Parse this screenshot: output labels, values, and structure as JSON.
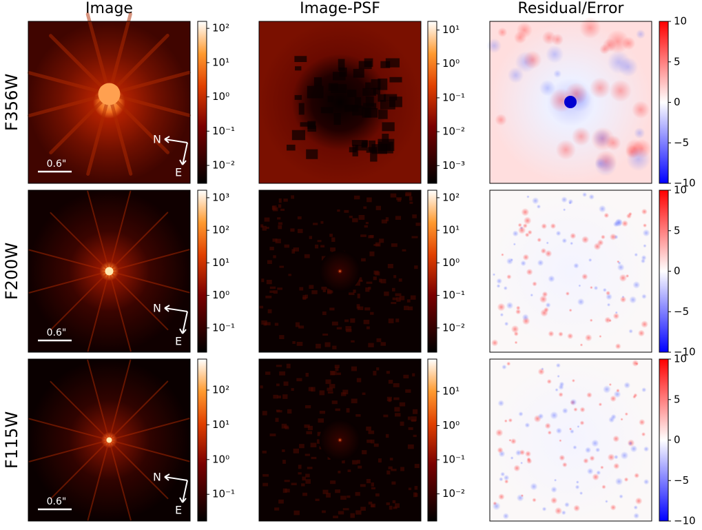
{
  "columns": [
    "Image",
    "Image-PSF",
    "Residual/Error"
  ],
  "rows": [
    {
      "label": "F356W",
      "scale_bar": "0.6\"",
      "compass": {
        "north": "N",
        "east": "E"
      },
      "colorbars": [
        {
          "colormap": "gist_heat",
          "scale": "log",
          "lim": [
            0.003,
            160
          ],
          "ticks": [
            {
              "value": 0.01,
              "label": "10⁻²"
            },
            {
              "value": 0.1,
              "label": "10⁻¹"
            },
            {
              "value": 1,
              "label": "10⁰"
            },
            {
              "value": 10,
              "label": "10¹"
            },
            {
              "value": 100,
              "label": "10²"
            }
          ]
        },
        {
          "colormap": "gist_heat",
          "scale": "log",
          "lim": [
            0.0003,
            18
          ],
          "ticks": [
            {
              "value": 0.001,
              "label": "10⁻³"
            },
            {
              "value": 0.01,
              "label": "10⁻²"
            },
            {
              "value": 0.1,
              "label": "10⁻¹"
            },
            {
              "value": 1,
              "label": "10⁰"
            },
            {
              "value": 10,
              "label": "10¹"
            }
          ]
        },
        {
          "colormap": "bwr",
          "scale": "linear",
          "lim": [
            -10,
            10
          ],
          "ticks": [
            {
              "value": -10,
              "label": "−10"
            },
            {
              "value": -5,
              "label": "−5"
            },
            0,
            5,
            10
          ]
        }
      ]
    },
    {
      "label": "F200W",
      "scale_bar": "0.6\"",
      "compass": {
        "north": "N",
        "east": "E"
      },
      "colorbars": [
        {
          "colormap": "gist_heat",
          "scale": "log",
          "lim": [
            0.018,
            1700
          ],
          "ticks": [
            {
              "value": 0.1,
              "label": "10⁻¹"
            },
            {
              "value": 1,
              "label": "10⁰"
            },
            {
              "value": 10,
              "label": "10¹"
            },
            {
              "value": 100,
              "label": "10²"
            },
            {
              "value": 1000,
              "label": "10³"
            }
          ]
        },
        {
          "colormap": "gist_heat",
          "scale": "log",
          "lim": [
            0.0018,
            170
          ],
          "ticks": [
            {
              "value": 0.01,
              "label": "10⁻²"
            },
            {
              "value": 0.1,
              "label": "10⁻¹"
            },
            {
              "value": 1,
              "label": "10⁰"
            },
            {
              "value": 10,
              "label": "10¹"
            },
            {
              "value": 100,
              "label": "10²"
            }
          ]
        },
        {
          "colormap": "bwr",
          "scale": "linear",
          "lim": [
            -10,
            10
          ],
          "ticks": [
            {
              "value": -10,
              "label": "−10"
            },
            {
              "value": -5,
              "label": "−5"
            },
            0,
            5,
            10
          ]
        }
      ]
    },
    {
      "label": "F115W",
      "scale_bar": "0.6\"",
      "compass": {
        "north": "N",
        "east": "E"
      },
      "colorbars": [
        {
          "colormap": "gist_heat",
          "scale": "log",
          "lim": [
            0.017,
            780
          ],
          "ticks": [
            {
              "value": 0.1,
              "label": "10⁻¹"
            },
            {
              "value": 1,
              "label": "10⁰"
            },
            {
              "value": 10,
              "label": "10¹"
            },
            {
              "value": 100,
              "label": "10²"
            }
          ]
        },
        {
          "colormap": "gist_heat",
          "scale": "log",
          "lim": [
            0.0016,
            89
          ],
          "ticks": [
            {
              "value": 0.01,
              "label": "10⁻²"
            },
            {
              "value": 0.1,
              "label": "10⁻¹"
            },
            {
              "value": 1,
              "label": "10⁰"
            },
            {
              "value": 10,
              "label": "10¹"
            }
          ]
        },
        {
          "colormap": "bwr",
          "scale": "linear",
          "lim": [
            -10,
            10
          ],
          "ticks": [
            {
              "value": -10,
              "label": "−10"
            },
            {
              "value": -5,
              "label": "−5"
            },
            0,
            5,
            10
          ]
        }
      ]
    }
  ]
}
